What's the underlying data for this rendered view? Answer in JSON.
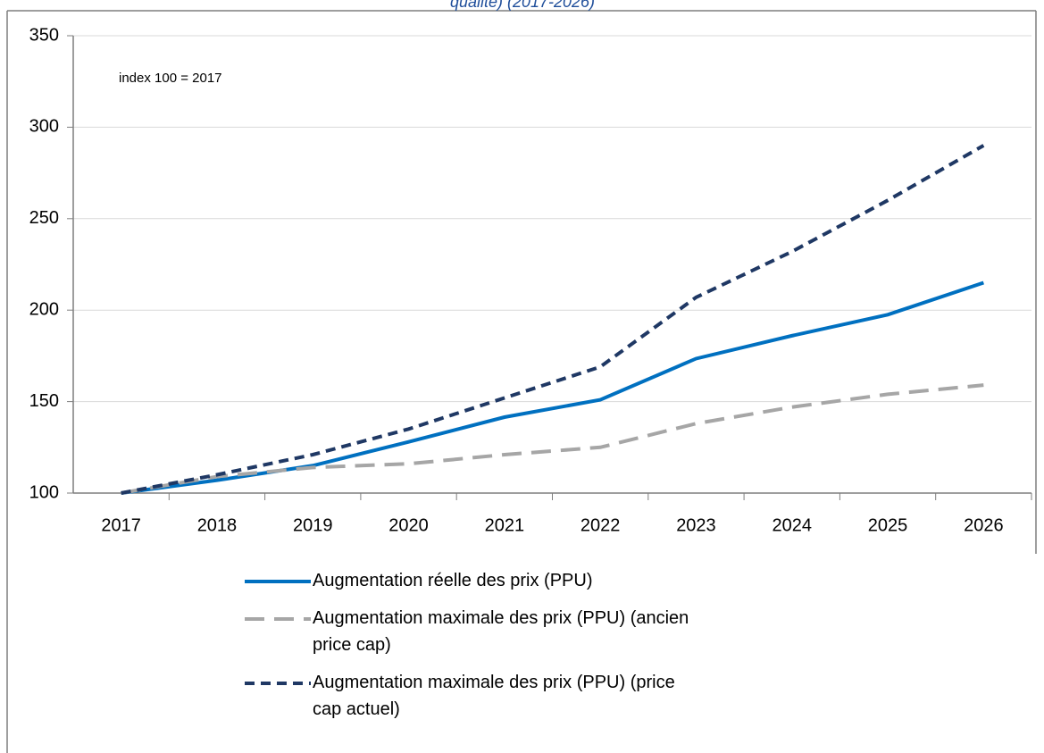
{
  "chart_data": {
    "type": "line",
    "title": "qualité) (2017-2026)",
    "annotation": "index 100 = 2017",
    "categories": [
      "2017",
      "2018",
      "2019",
      "2020",
      "2021",
      "2022",
      "2023",
      "2024",
      "2025",
      "2026"
    ],
    "series": [
      {
        "name": "Augmentation réelle des prix (PPU)",
        "color": "#0070c0",
        "dash": "solid",
        "values": [
          100,
          107,
          115,
          128,
          141.5,
          151,
          173.5,
          186,
          197.5,
          215
        ]
      },
      {
        "name": "Augmentation maximale des prix (PPU) (ancien price cap)",
        "color": "#a6a6a6",
        "dash": "long",
        "values": [
          100,
          109,
          114,
          116,
          121,
          125,
          138,
          147,
          154,
          159
        ]
      },
      {
        "name": "Augmentation maximale des prix (PPU) (price cap actuel)",
        "color": "#1f3864",
        "dash": "short",
        "values": [
          100,
          110,
          121,
          135,
          152,
          169,
          207,
          232,
          260,
          290
        ]
      }
    ],
    "ylim": [
      100,
      350
    ],
    "yticks": [
      100,
      150,
      200,
      250,
      300,
      350
    ],
    "grid": true,
    "legend": "bottom"
  }
}
